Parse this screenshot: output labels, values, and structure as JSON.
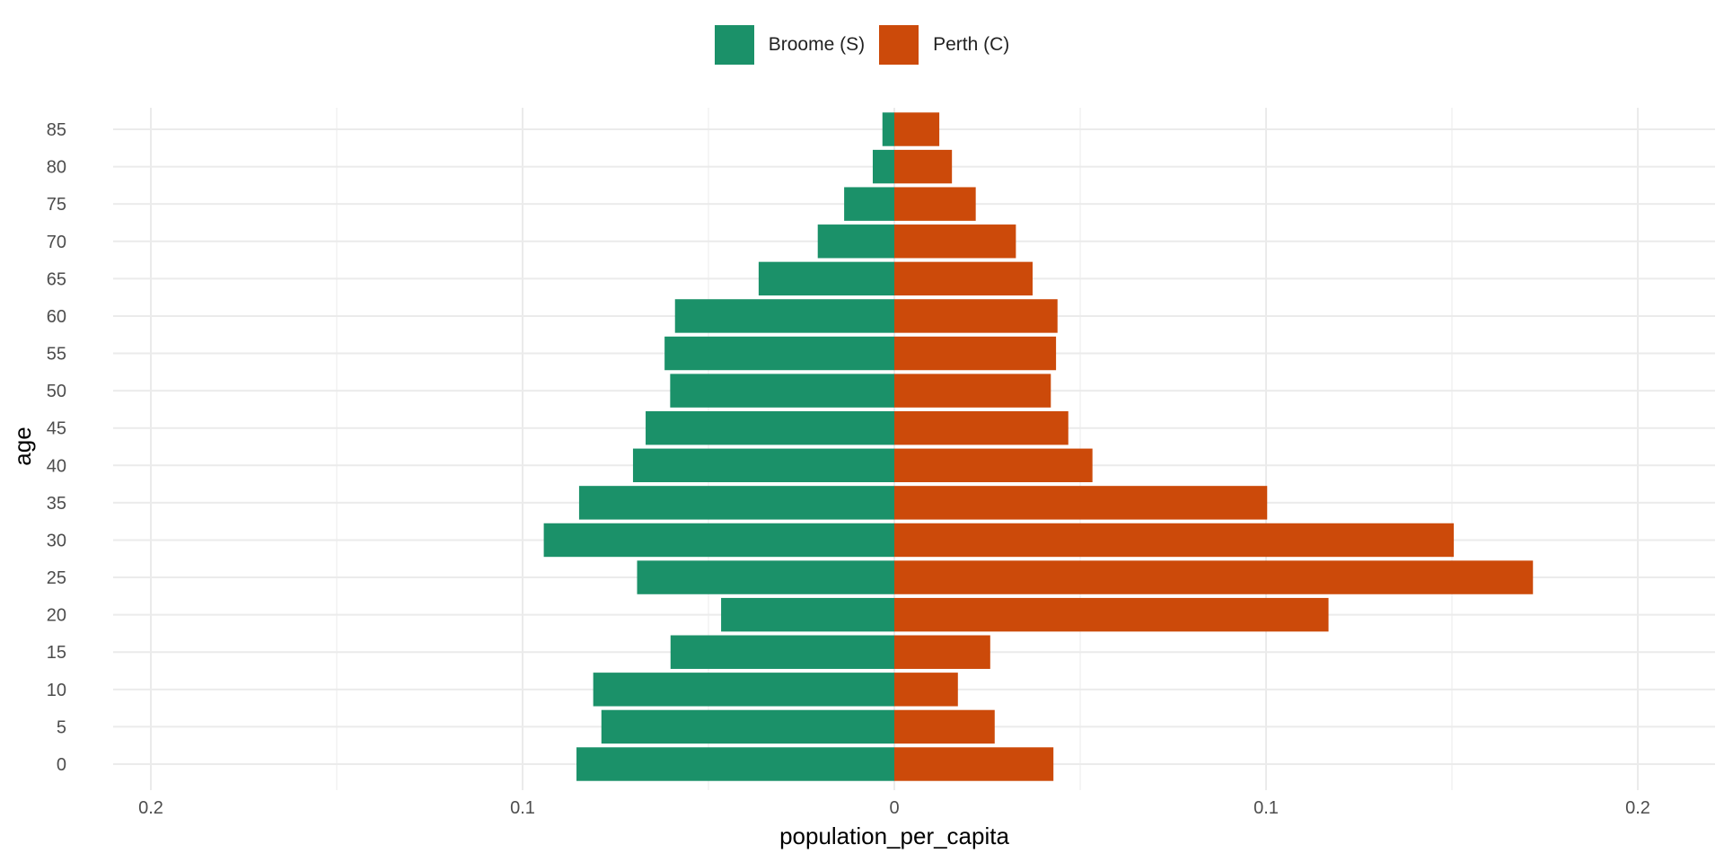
{
  "chart_data": {
    "type": "bar",
    "orientation": "horizontal",
    "layout": "population-pyramid",
    "xlabel": "population_per_capita",
    "ylabel": "age",
    "xlim": [
      -0.2,
      0.2
    ],
    "x_ticks": [
      -0.2,
      -0.1,
      0,
      0.1,
      0.2
    ],
    "x_tick_labels": [
      "0.2",
      "0.1",
      "0",
      "0.1",
      "0.2"
    ],
    "categories": [
      "0",
      "5",
      "10",
      "15",
      "20",
      "25",
      "30",
      "35",
      "40",
      "45",
      "50",
      "55",
      "60",
      "65",
      "70",
      "75",
      "80",
      "85"
    ],
    "grid": true,
    "legend_position": "top-center",
    "series": [
      {
        "name": "Broome (S)",
        "color": "#1b9169",
        "side": "left",
        "values": [
          0.0855,
          0.0788,
          0.081,
          0.0602,
          0.0466,
          0.0692,
          0.0943,
          0.0848,
          0.0703,
          0.0669,
          0.0603,
          0.0618,
          0.059,
          0.0365,
          0.0206,
          0.0135,
          0.0058,
          0.0032
        ]
      },
      {
        "name": "Perth (C)",
        "color": "#cc4a0a",
        "side": "right",
        "values": [
          0.0428,
          0.027,
          0.0171,
          0.0258,
          0.1168,
          0.1718,
          0.1505,
          0.1003,
          0.0533,
          0.0468,
          0.0421,
          0.0435,
          0.0439,
          0.0372,
          0.0327,
          0.0219,
          0.0155,
          0.0121
        ]
      }
    ]
  }
}
